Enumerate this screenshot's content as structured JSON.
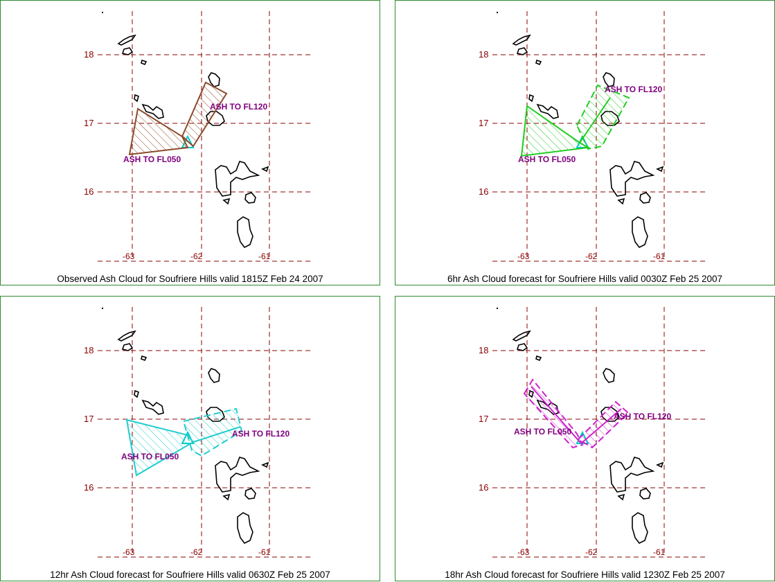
{
  "panels": [
    {
      "caption": "Observed Ash Cloud for Soufriere  Hills valid 1815Z Feb 24 2007",
      "color": "#8b4a2a",
      "label_low": "ASH TO FL050",
      "label_high": "ASH TO FL120",
      "label_color": "#800080"
    },
    {
      "caption": "6hr Ash Cloud forecast for Soufriere  Hills valid 0030Z Feb 25 2007",
      "color": "#22cc22",
      "label_low": "ASH TO FL050",
      "label_high": "ASH TO FL120",
      "label_color": "#800080"
    },
    {
      "caption": "12hr Ash Cloud forecast for Soufriere  Hills valid 0630Z Feb 25 2007",
      "color": "#22cccc",
      "label_low": "ASH TO FL050",
      "label_high": "ASH TO FL120",
      "label_color": "#800080"
    },
    {
      "caption": "18hr Ash Cloud forecast for Soufriere  Hills valid 1230Z Feb 25 2007",
      "color": "#cc22cc",
      "label_low": "ASH TO FL050",
      "label_high": "ASH TO FL120",
      "label_color": "#800080"
    }
  ],
  "lat_labels": [
    "18",
    "17",
    "16"
  ],
  "lon_labels": [
    "-63",
    "-62",
    "-61"
  ],
  "colors": {
    "grid": "#8b0000",
    "border": "#2e8b2e",
    "coast": "#000000",
    "volcano": "#00cccc"
  }
}
